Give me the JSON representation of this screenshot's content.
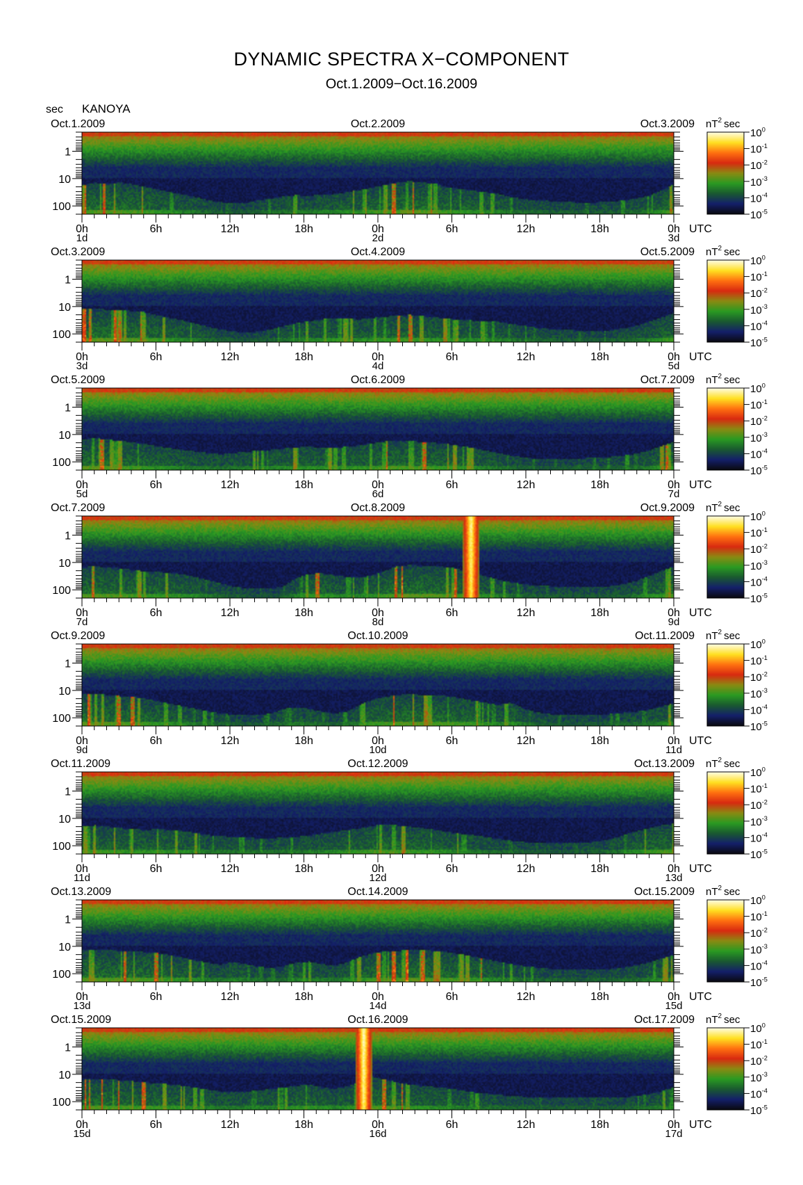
{
  "header": {
    "title": "DYNAMIC SPECTRA X−COMPONENT",
    "subtitle": "Oct.1.2009−Oct.16.2009",
    "unit_label": "sec",
    "station": "KANOYA",
    "time_zone": "UTC",
    "cbar_unit_base": "nT",
    "cbar_unit_exp": "2",
    "cbar_unit_tail": "sec"
  },
  "chart_data": {
    "type": "heatmap",
    "x_axis": "time (hours, 48 h per panel)",
    "xlim": [
      0,
      48
    ],
    "x_ticks": [
      0,
      6,
      12,
      18,
      24,
      30,
      36,
      42,
      48
    ],
    "x_tick_labels": [
      "0h",
      "6h",
      "12h",
      "18h",
      "0h",
      "6h",
      "12h",
      "18h",
      "0h"
    ],
    "y_axis": "period (sec), log scale, inverted",
    "y_scale": "log",
    "ylim": [
      0.2,
      200
    ],
    "y_ticks": [
      1,
      10,
      100
    ],
    "y_tick_labels": [
      "1",
      "10",
      "100"
    ],
    "colorbar": {
      "scale": "log",
      "range": [
        1e-05,
        1
      ],
      "ticks": [
        {
          "base": "10",
          "exp": "0"
        },
        {
          "base": "10",
          "exp": "-1"
        },
        {
          "base": "10",
          "exp": "-2"
        },
        {
          "base": "10",
          "exp": "-3"
        },
        {
          "base": "10",
          "exp": "-4"
        },
        {
          "base": "10",
          "exp": "-5"
        }
      ],
      "colors": [
        "#0a0a12",
        "#14206a",
        "#1a5a30",
        "#2a9a22",
        "#8a8a12",
        "#d82a10",
        "#ff7010",
        "#ffe020",
        "#fffce0"
      ]
    },
    "panels": [
      {
        "date_left": "Oct.1.2009",
        "date_mid": "Oct.2.2009",
        "date_right": "Oct.3.2009",
        "day_left": "1d",
        "day_mid": "2d",
        "day_right": "3d",
        "activity": [
          0.78,
          0.85,
          0.82,
          0.86,
          0.8,
          0.72,
          0.64,
          0.55,
          0.48,
          0.4,
          0.3,
          0.24,
          0.2,
          0.22,
          0.3,
          0.36,
          0.42,
          0.46,
          0.44,
          0.48,
          0.5,
          0.55,
          0.62,
          0.7,
          0.78,
          0.86,
          0.9,
          0.86,
          0.82,
          0.7,
          0.66,
          0.6,
          0.55,
          0.5,
          0.4,
          0.34,
          0.3,
          0.28,
          0.26,
          0.24,
          0.22,
          0.24,
          0.26,
          0.3,
          0.36,
          0.44,
          0.62,
          0.8
        ],
        "bursts": []
      },
      {
        "date_left": "Oct.3.2009",
        "date_mid": "Oct.4.2009",
        "date_right": "Oct.5.2009",
        "day_left": "3d",
        "day_mid": "4d",
        "day_right": "5d",
        "activity": [
          0.9,
          0.92,
          0.88,
          0.86,
          0.84,
          0.8,
          0.7,
          0.62,
          0.54,
          0.44,
          0.34,
          0.26,
          0.2,
          0.18,
          0.2,
          0.26,
          0.38,
          0.46,
          0.52,
          0.58,
          0.62,
          0.6,
          0.58,
          0.62,
          0.66,
          0.7,
          0.72,
          0.68,
          0.64,
          0.6,
          0.56,
          0.54,
          0.52,
          0.5,
          0.44,
          0.38,
          0.32,
          0.28,
          0.26,
          0.24,
          0.22,
          0.22,
          0.24,
          0.3,
          0.38,
          0.5,
          0.64,
          0.78
        ],
        "bursts": []
      },
      {
        "date_left": "Oct.5.2009",
        "date_mid": "Oct.6.2009",
        "date_right": "Oct.7.2009",
        "day_left": "5d",
        "day_mid": "6d",
        "day_right": "7d",
        "activity": [
          0.84,
          0.86,
          0.82,
          0.78,
          0.74,
          0.68,
          0.6,
          0.55,
          0.5,
          0.45,
          0.4,
          0.36,
          0.4,
          0.44,
          0.48,
          0.5,
          0.54,
          0.58,
          0.6,
          0.56,
          0.56,
          0.6,
          0.64,
          0.7,
          0.76,
          0.8,
          0.78,
          0.74,
          0.72,
          0.68,
          0.62,
          0.56,
          0.48,
          0.4,
          0.32,
          0.26,
          0.22,
          0.2,
          0.2,
          0.22,
          0.24,
          0.26,
          0.28,
          0.32,
          0.38,
          0.48,
          0.62,
          0.76
        ],
        "bursts": []
      },
      {
        "date_left": "Oct.7.2009",
        "date_mid": "Oct.8.2009",
        "date_right": "Oct.9.2009",
        "day_left": "7d",
        "day_mid": "8d",
        "day_right": "9d",
        "activity": [
          0.84,
          0.86,
          0.82,
          0.8,
          0.74,
          0.7,
          0.68,
          0.66,
          0.6,
          0.52,
          0.42,
          0.32,
          0.22,
          0.18,
          0.16,
          0.16,
          0.24,
          0.5,
          0.62,
          0.64,
          0.58,
          0.52,
          0.5,
          0.58,
          0.72,
          0.86,
          0.9,
          0.88,
          0.86,
          0.84,
          0.76,
          0.66,
          0.55,
          0.45,
          0.36,
          0.3,
          0.26,
          0.24,
          0.22,
          0.2,
          0.2,
          0.22,
          0.24,
          0.3,
          0.4,
          0.56,
          0.72,
          0.86
        ],
        "bursts": [
          {
            "t": 31.5,
            "strength": 0.95
          }
        ]
      },
      {
        "date_left": "Oct.9.2009",
        "date_mid": "Oct.10.2009",
        "date_right": "Oct.11.2009",
        "day_left": "9d",
        "day_mid": "10d",
        "day_right": "11d",
        "activity": [
          0.86,
          0.88,
          0.84,
          0.8,
          0.78,
          0.72,
          0.64,
          0.56,
          0.48,
          0.4,
          0.32,
          0.26,
          0.22,
          0.2,
          0.2,
          0.26,
          0.4,
          0.46,
          0.4,
          0.32,
          0.26,
          0.32,
          0.52,
          0.7,
          0.78,
          0.84,
          0.86,
          0.84,
          0.82,
          0.8,
          0.74,
          0.66,
          0.6,
          0.52,
          0.6,
          0.42,
          0.3,
          0.24,
          0.22,
          0.2,
          0.2,
          0.22,
          0.24,
          0.28,
          0.32,
          0.38,
          0.48,
          0.58
        ],
        "bursts": []
      },
      {
        "date_left": "Oct.11.2009",
        "date_mid": "Oct.12.2009",
        "date_right": "Oct.13.2009",
        "day_left": "11d",
        "day_mid": "12d",
        "day_right": "13d",
        "activity": [
          0.72,
          0.76,
          0.72,
          0.68,
          0.64,
          0.62,
          0.64,
          0.62,
          0.58,
          0.52,
          0.46,
          0.42,
          0.4,
          0.38,
          0.36,
          0.36,
          0.38,
          0.4,
          0.44,
          0.5,
          0.56,
          0.62,
          0.66,
          0.74,
          0.8,
          0.76,
          0.72,
          0.68,
          0.62,
          0.56,
          0.5,
          0.46,
          0.4,
          0.34,
          0.28,
          0.24,
          0.22,
          0.2,
          0.2,
          0.2,
          0.22,
          0.26,
          0.34,
          0.46,
          0.58,
          0.68,
          0.76,
          0.82
        ],
        "bursts": []
      },
      {
        "date_left": "Oct.13.2009",
        "date_mid": "Oct.14.2009",
        "date_right": "Oct.15.2009",
        "day_left": "13d",
        "day_mid": "14d",
        "day_right": "15d",
        "activity": [
          0.86,
          0.88,
          0.86,
          0.84,
          0.82,
          0.8,
          0.76,
          0.7,
          0.62,
          0.54,
          0.46,
          0.4,
          0.5,
          0.42,
          0.34,
          0.3,
          0.36,
          0.48,
          0.5,
          0.42,
          0.38,
          0.48,
          0.64,
          0.76,
          0.82,
          0.84,
          0.86,
          0.86,
          0.84,
          0.8,
          0.74,
          0.66,
          0.58,
          0.5,
          0.42,
          0.36,
          0.32,
          0.28,
          0.26,
          0.24,
          0.24,
          0.26,
          0.28,
          0.32,
          0.38,
          0.48,
          0.6,
          0.72
        ],
        "bursts": []
      },
      {
        "date_left": "Oct.15.2009",
        "date_mid": "Oct.16.2009",
        "date_right": "Oct.17.2009",
        "day_left": "15d",
        "day_mid": "16d",
        "day_right": "17d",
        "activity": [
          0.8,
          0.84,
          0.82,
          0.8,
          0.76,
          0.72,
          0.7,
          0.66,
          0.62,
          0.56,
          0.5,
          0.44,
          0.42,
          0.44,
          0.48,
          0.52,
          0.56,
          0.62,
          0.66,
          0.58,
          0.52,
          0.6,
          0.72,
          0.9,
          0.82,
          0.72,
          0.66,
          0.62,
          0.58,
          0.54,
          0.48,
          0.42,
          0.38,
          0.34,
          0.3,
          0.28,
          0.26,
          0.24,
          0.26,
          0.28,
          0.26,
          0.24,
          0.24,
          0.26,
          0.3,
          0.36,
          0.46,
          0.58
        ],
        "bursts": [
          {
            "t": 22.8,
            "strength": 1.0
          }
        ]
      }
    ]
  }
}
